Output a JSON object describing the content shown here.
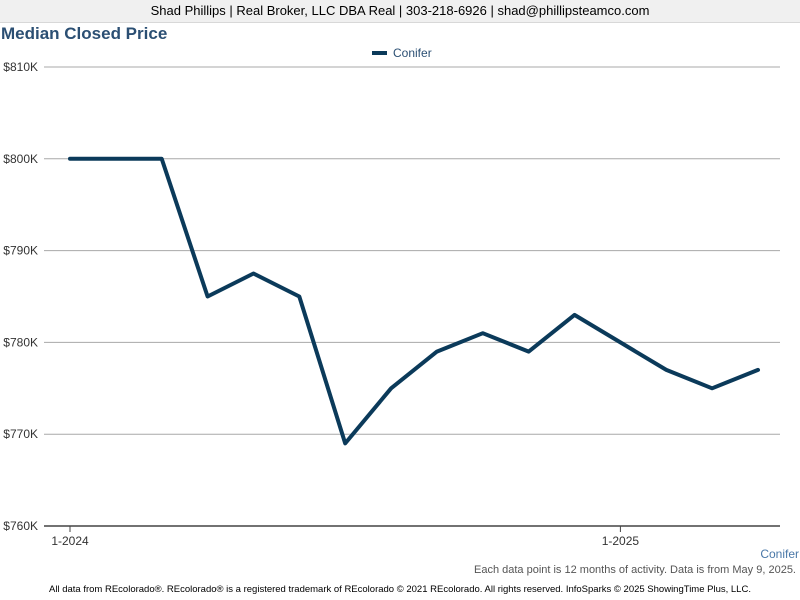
{
  "header": {
    "contact": "Shad Phillips | Real Broker, LLC DBA Real | 303-218-6926 | shad@phillipsteamco.com"
  },
  "chart_data": {
    "type": "line",
    "title": "Median Closed Price",
    "xlabel": "",
    "ylabel": "",
    "x": [
      "1-2024",
      "2-2024",
      "3-2024",
      "4-2024",
      "5-2024",
      "6-2024",
      "7-2024",
      "8-2024",
      "9-2024",
      "10-2024",
      "11-2024",
      "12-2024",
      "1-2025",
      "2-2025",
      "3-2025",
      "4-2025"
    ],
    "x_tick_labels": [
      "1-2024",
      "1-2025"
    ],
    "series": [
      {
        "name": "Conifer",
        "color": "#0b3a5a",
        "values": [
          800000,
          800000,
          800000,
          785000,
          787500,
          785000,
          769000,
          775000,
          779000,
          781000,
          779000,
          783000,
          780000,
          777000,
          775000,
          777000
        ]
      }
    ],
    "ylim": [
      760000,
      810000
    ],
    "y_ticks": [
      760000,
      770000,
      780000,
      790000,
      800000,
      810000
    ],
    "y_tick_labels": [
      "$760K",
      "$770K",
      "$780K",
      "$790K",
      "$800K",
      "$810K"
    ],
    "grid": true,
    "legend": "top-center"
  },
  "side_label": "Conifer",
  "note": "Each data point is 12 months of activity. Data is from May 9, 2025.",
  "footer": "All data from REcolorado®. REcolorado® is a registered trademark of REcolorado © 2021 REcolorado. All rights reserved. InfoSparks © 2025 ShowingTime Plus, LLC."
}
